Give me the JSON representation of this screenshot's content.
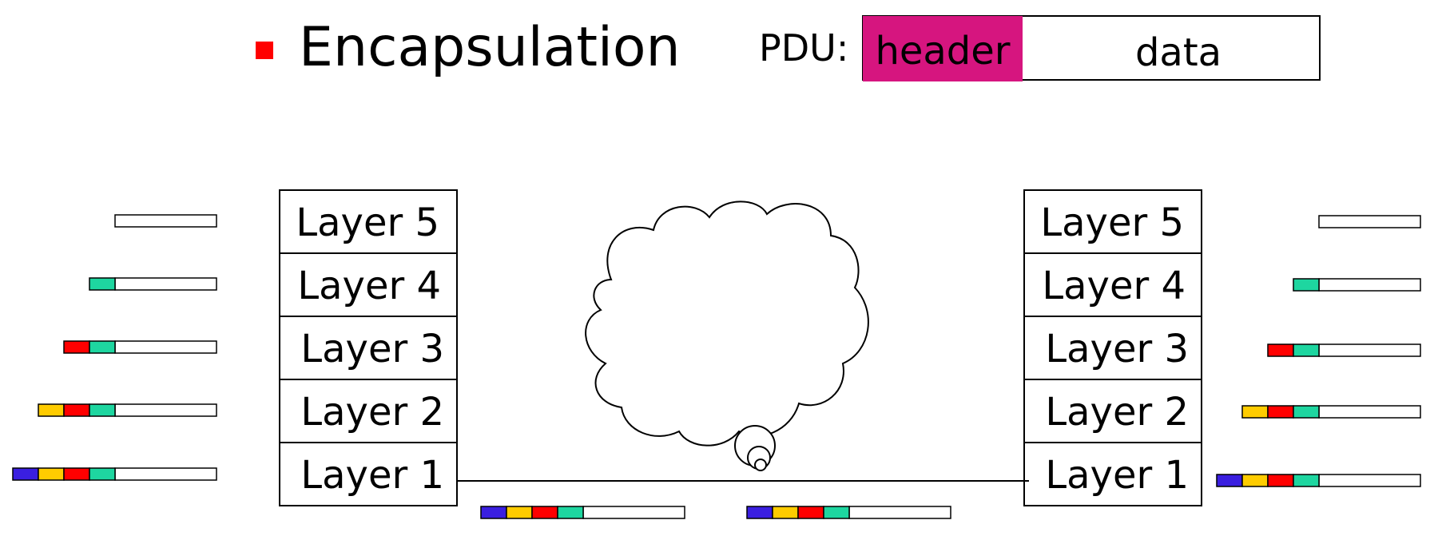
{
  "title": "Encapsulation",
  "pdu": {
    "label": "PDU:",
    "header": "header",
    "data": "data"
  },
  "colors": {
    "bullet": "#ff0000",
    "header_box": "#d6157f",
    "layer1_header": "#3a1fe0",
    "layer2_header": "#ffcc00",
    "layer3_header": "#ff0000",
    "layer4_header": "#1ed6a0"
  },
  "stacks": {
    "left": [
      "Layer 5",
      "Layer 4",
      "Layer 3",
      "Layer 2",
      "Layer 1"
    ],
    "right": [
      "Layer 5",
      "Layer 4",
      "Layer 3",
      "Layer 2",
      "Layer 1"
    ]
  }
}
